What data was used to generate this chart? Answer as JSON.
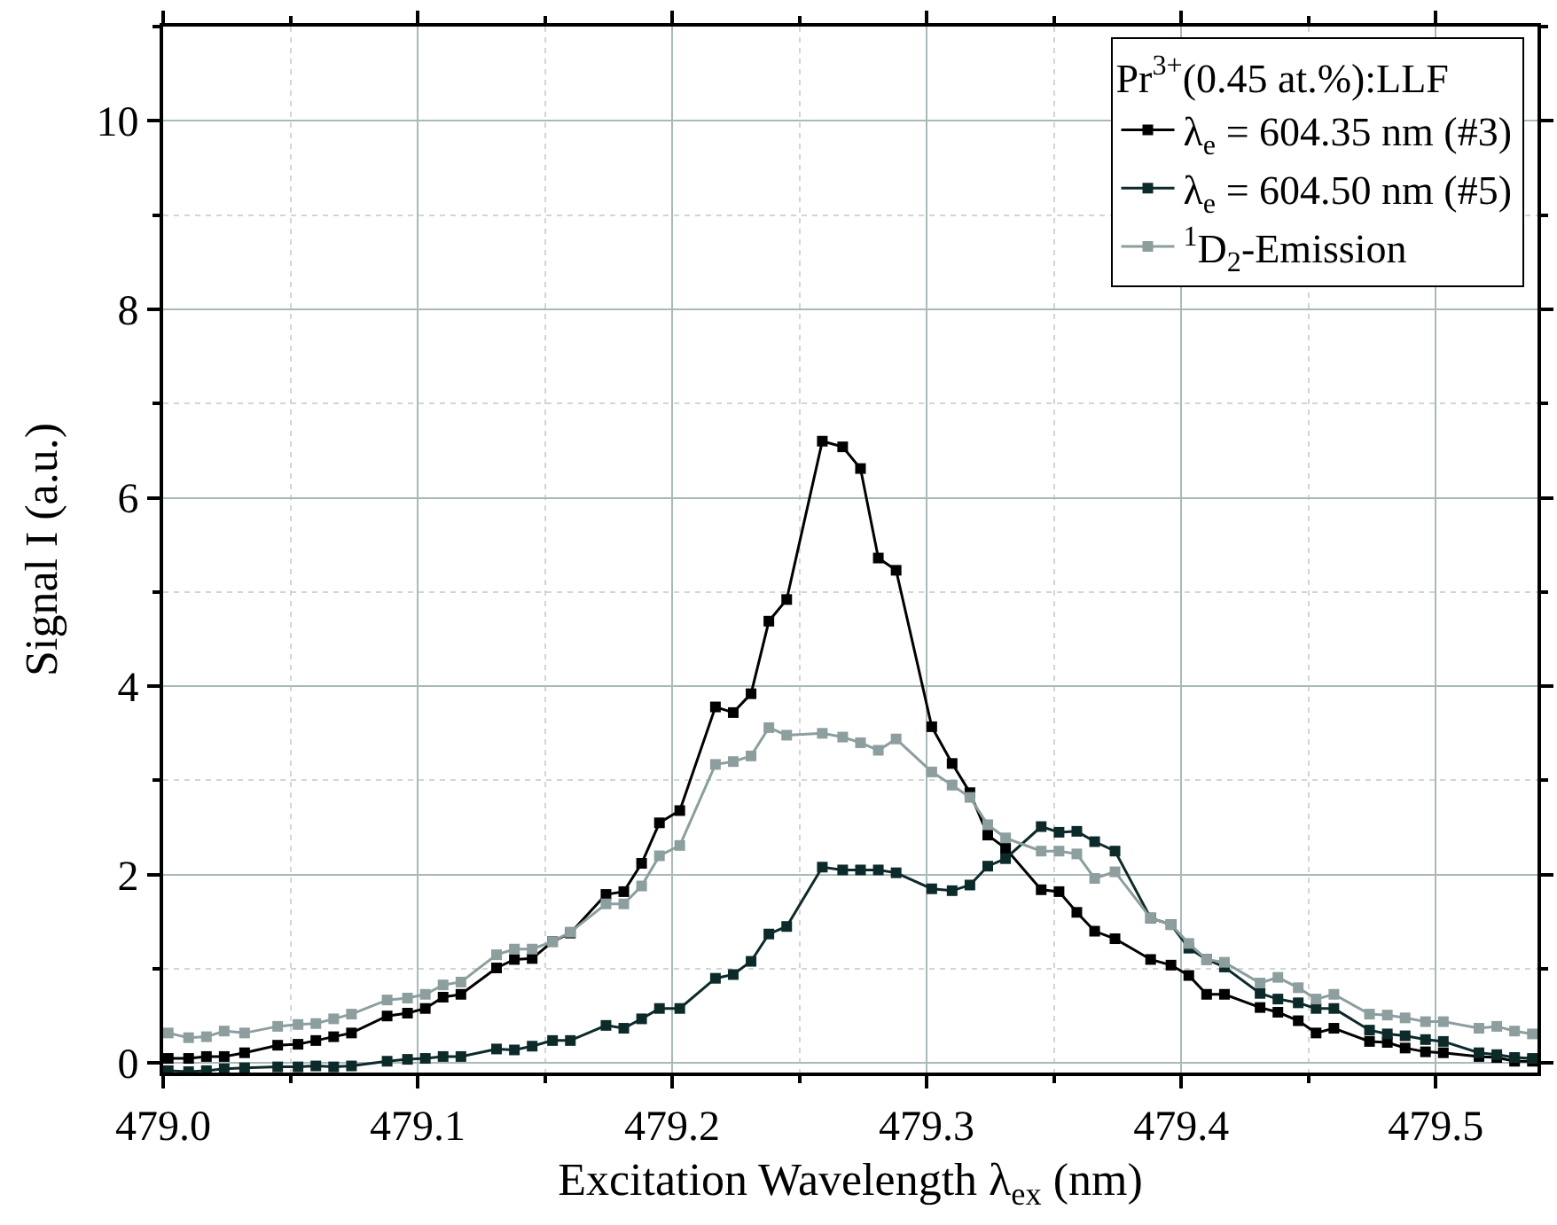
{
  "chart_data": {
    "type": "line",
    "xlabel": "Excitation Wavelength λ$_{ex}$ (nm)",
    "ylabel": "Signal I (a.u.)",
    "legend_title": "Pr$^{3+}$(0.45 at.%):LLF",
    "x": [
      479.002,
      479.01,
      479.017,
      479.024,
      479.032,
      479.045,
      479.053,
      479.06,
      479.067,
      479.074,
      479.088,
      479.096,
      479.103,
      479.11,
      479.117,
      479.131,
      479.138,
      479.145,
      479.153,
      479.16,
      479.174,
      479.181,
      479.188,
      479.195,
      479.203,
      479.217,
      479.224,
      479.231,
      479.238,
      479.245,
      479.259,
      479.267,
      479.274,
      479.281,
      479.288,
      479.302,
      479.31,
      479.317,
      479.324,
      479.331,
      479.345,
      479.352,
      479.359,
      479.366,
      479.374,
      479.388,
      479.396,
      479.403,
      479.41,
      479.417,
      479.431,
      479.438,
      479.446,
      479.453,
      479.46,
      479.474,
      479.481,
      479.488,
      479.496,
      479.503,
      479.517,
      479.524,
      479.531,
      479.538
    ],
    "series": [
      {
        "name": "λ$_{e}$ = 604.35 nm (#3)",
        "color": "#000000",
        "values": [
          0.05,
          0.05,
          0.07,
          0.07,
          0.11,
          0.19,
          0.2,
          0.24,
          0.28,
          0.32,
          0.5,
          0.53,
          0.58,
          0.7,
          0.73,
          1.01,
          1.1,
          1.11,
          1.29,
          1.38,
          1.79,
          1.82,
          2.12,
          2.55,
          2.68,
          3.78,
          3.72,
          3.92,
          4.69,
          4.92,
          6.6,
          6.54,
          6.31,
          5.36,
          5.23,
          3.57,
          3.18,
          2.87,
          2.42,
          2.28,
          1.84,
          1.82,
          1.6,
          1.4,
          1.32,
          1.1,
          1.04,
          0.93,
          0.73,
          0.73,
          0.59,
          0.54,
          0.45,
          0.32,
          0.37,
          0.23,
          0.22,
          0.16,
          0.12,
          0.11,
          0.07,
          0.06,
          0.02,
          0.02
        ]
      },
      {
        "name": "λ$_{e}$ = 604.50 nm (#5)",
        "color": "#0d2a2a",
        "values": [
          -0.08,
          -0.09,
          -0.08,
          -0.06,
          -0.05,
          -0.04,
          -0.04,
          -0.03,
          -0.04,
          -0.03,
          0.02,
          0.04,
          0.05,
          0.07,
          0.07,
          0.15,
          0.14,
          0.18,
          0.24,
          0.24,
          0.4,
          0.37,
          0.47,
          0.58,
          0.58,
          0.9,
          0.94,
          1.08,
          1.37,
          1.45,
          2.08,
          2.05,
          2.05,
          2.05,
          2.02,
          1.85,
          1.83,
          1.89,
          2.09,
          2.17,
          2.51,
          2.45,
          2.46,
          2.35,
          2.25,
          1.54,
          1.47,
          1.22,
          1.1,
          1.02,
          0.74,
          0.68,
          0.64,
          0.58,
          0.58,
          0.35,
          0.31,
          0.29,
          0.25,
          0.23,
          0.11,
          0.09,
          0.06,
          0.05
        ]
      },
      {
        "name": "$^{1}$D$_{2}$-Emission",
        "color": "#8c9e9e",
        "values": [
          0.32,
          0.27,
          0.28,
          0.34,
          0.32,
          0.39,
          0.41,
          0.42,
          0.47,
          0.52,
          0.67,
          0.69,
          0.73,
          0.83,
          0.86,
          1.15,
          1.21,
          1.21,
          1.29,
          1.39,
          1.69,
          1.69,
          1.88,
          2.2,
          2.31,
          3.17,
          3.2,
          3.26,
          3.56,
          3.48,
          3.5,
          3.46,
          3.4,
          3.32,
          3.44,
          3.09,
          2.95,
          2.82,
          2.53,
          2.39,
          2.25,
          2.25,
          2.22,
          1.96,
          2.03,
          1.54,
          1.47,
          1.27,
          1.1,
          1.07,
          0.85,
          0.91,
          0.8,
          0.68,
          0.73,
          0.52,
          0.51,
          0.48,
          0.44,
          0.44,
          0.37,
          0.39,
          0.34,
          0.31
        ]
      }
    ],
    "xlim": [
      479.0,
      479.54
    ],
    "xticks": [
      {
        "value": 479.0,
        "label": "479.0"
      },
      479.1,
      479.2,
      479.3,
      479.4,
      479.5
    ],
    "ylim": [
      -0.1,
      11
    ],
    "yticks": [
      0,
      2,
      4,
      6,
      8,
      10
    ],
    "grid": true,
    "legend": "top right",
    "marker": "square",
    "line_style": "solid"
  }
}
